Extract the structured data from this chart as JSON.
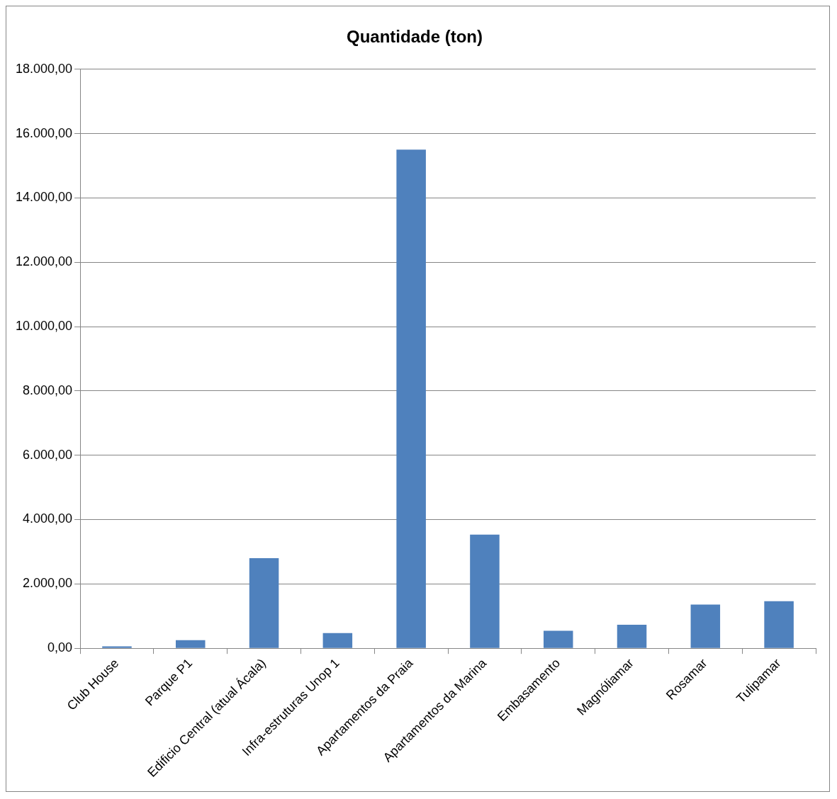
{
  "chart_data": {
    "type": "bar",
    "title": "Quantidade (ton)",
    "categories": [
      "Club House",
      "Parque P1",
      "Edificio Central (atual Ácala)",
      "Infra-estruturas Unop 1",
      "Apartamentos da Praia",
      "Apartamentos da Marina",
      "Embasamento",
      "Magnóliamar",
      "Rosamar",
      "Tulipamar"
    ],
    "values": [
      60,
      250,
      2800,
      470,
      15500,
      3530,
      540,
      730,
      1360,
      1460
    ],
    "color": "#4f81bd",
    "ylim": [
      0,
      18000
    ],
    "yticks": [
      {
        "value": 0,
        "label": "0,00"
      },
      {
        "value": 2000,
        "label": "2.000,00"
      },
      {
        "value": 4000,
        "label": "4.000,00"
      },
      {
        "value": 6000,
        "label": "6.000,00"
      },
      {
        "value": 8000,
        "label": "8.000,00"
      },
      {
        "value": 10000,
        "label": "10.000,00"
      },
      {
        "value": 12000,
        "label": "12.000,00"
      },
      {
        "value": 14000,
        "label": "14.000,00"
      },
      {
        "value": 16000,
        "label": "16.000,00"
      },
      {
        "value": 18000,
        "label": "18.000,00"
      }
    ],
    "grid": "y",
    "legend": false
  }
}
